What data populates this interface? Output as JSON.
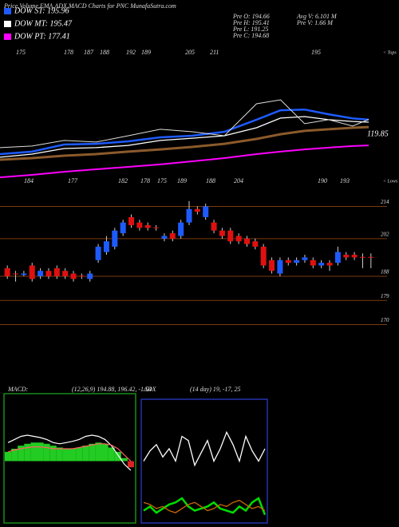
{
  "header": {
    "title": "Price,Volume,EMA,ADX,MACD Charts for PNC MunafaSutra.com",
    "legend": [
      {
        "label": "DOW ST: 195.96",
        "color": "#1e5bff"
      },
      {
        "label": "DOW MT: 195.47",
        "color": "#ffffff"
      },
      {
        "label": "DOW PT: 177.41",
        "color": "#ff00ff"
      }
    ],
    "info": [
      "Pre  O: 194.66",
      "Pre  H: 195.41",
      "Pre  L: 191.25",
      "Pre  C: 194.68",
      "Avg V: 6.101 M",
      "Pre  V: 1.66  M"
    ]
  },
  "chart_data": [
    {
      "type": "line",
      "tops_label": "< Tops",
      "lows_label": "< Lows",
      "last_label": "119.85",
      "tops": [
        175,
        178,
        187,
        188,
        192,
        189,
        205,
        211,
        195
      ],
      "lows": [
        184,
        177,
        182,
        178,
        175,
        189,
        188,
        204,
        190,
        193
      ],
      "x": [
        0,
        40,
        80,
        120,
        160,
        200,
        240,
        280,
        320,
        350,
        380,
        410,
        440,
        460
      ],
      "xlim": [
        0,
        460
      ],
      "ylim": [
        150,
        230
      ],
      "series": [
        {
          "color": "#8b5a2b",
          "values": [
            166.0,
            166.9,
            168.3,
            169.2,
            170.6,
            171.9,
            173.3,
            175.1,
            177.9,
            180.6,
            182.5,
            183.4,
            184.3,
            184.7
          ]
        },
        {
          "color": "#ff00ff",
          "values": [
            155.9,
            157.3,
            159.1,
            160.5,
            161.9,
            163.3,
            165.1,
            166.9,
            169.2,
            170.6,
            171.9,
            172.9,
            173.8,
            174.2
          ]
        },
        {
          "color": "#ffffff",
          "values": [
            167.4,
            169.2,
            172.4,
            172.9,
            174.2,
            177.0,
            178.3,
            179.7,
            184.3,
            189.8,
            190.7,
            188.9,
            187.9,
            187.5
          ]
        },
        {
          "color": "#1e5bff",
          "values": [
            169.2,
            170.6,
            174.7,
            175.1,
            176.5,
            178.8,
            179.7,
            182.0,
            188.9,
            194.3,
            194.7,
            192.0,
            189.7,
            188.9
          ]
        },
        {
          "color": "#dddddd",
          "values": [
            172.9,
            173.8,
            177.0,
            176.1,
            179.7,
            183.4,
            182.0,
            179.7,
            198.0,
            200.3,
            186.6,
            188.9,
            185.3,
            189.1
          ]
        }
      ]
    },
    {
      "type": "candlestick",
      "up_color": "#1e5bff",
      "down_color": "#e01010",
      "grid_color": "#7a3a10",
      "ylim": [
        166,
        218
      ],
      "yticks": [
        214,
        202,
        188,
        179,
        170
      ],
      "open": [
        191,
        189,
        188.5,
        192,
        188,
        190,
        191,
        190,
        189,
        188.2,
        187,
        194,
        197,
        199,
        204,
        210,
        208,
        207,
        206.2,
        202,
        204,
        203,
        208,
        213,
        210,
        208,
        205,
        205,
        203,
        202,
        201,
        199,
        194,
        189,
        194,
        193,
        194,
        194,
        192,
        193,
        193,
        196,
        196,
        195.2,
        195.2
      ],
      "close": [
        188,
        188.8,
        189,
        187,
        190,
        188,
        188,
        188,
        187,
        188,
        189,
        199,
        201,
        205,
        208,
        207,
        206,
        206,
        206,
        203,
        202,
        208,
        213,
        212,
        214,
        205,
        203,
        201,
        201,
        200,
        199,
        192,
        190,
        194,
        193,
        194,
        195,
        192,
        193,
        192,
        197,
        195,
        195,
        195,
        195
      ],
      "high": [
        192,
        190,
        190,
        193,
        191,
        191,
        192,
        191,
        190,
        189,
        190,
        200,
        203,
        206,
        209,
        211,
        209,
        208,
        207,
        204,
        205,
        209,
        216,
        214,
        215,
        209,
        206,
        206,
        204,
        203,
        202,
        200,
        195,
        195,
        195,
        195,
        196,
        195,
        194,
        194,
        199,
        197,
        197,
        196.5,
        196.5
      ],
      "low": [
        187,
        186,
        188,
        186,
        187,
        187,
        187,
        187,
        186,
        187,
        186,
        193,
        196,
        198,
        203,
        206,
        205,
        205,
        205,
        201,
        201,
        202,
        207,
        211,
        209,
        204,
        202,
        200,
        200,
        199,
        198,
        191,
        189,
        188,
        192,
        192,
        193,
        191,
        191,
        190,
        192,
        194,
        194,
        191,
        191
      ]
    },
    {
      "type": "macd",
      "label": "MACD:",
      "params": "(12,26,9) 194.88, 196.42, -1.54",
      "ylim": [
        -10,
        10
      ],
      "histogram": [
        1.5,
        2,
        2.5,
        2.8,
        3,
        3,
        2.8,
        2.5,
        2.2,
        2,
        2,
        2.2,
        2.5,
        2.8,
        3,
        2.8,
        2.2,
        1.5,
        0.5,
        -1
      ],
      "series": [
        {
          "color": "#ffffff",
          "values": [
            3,
            3.5,
            4,
            4.2,
            4,
            3.8,
            3.5,
            3,
            2.8,
            3,
            3.2,
            3.5,
            4,
            4.2,
            4,
            3.5,
            2.5,
            1,
            -0.5,
            -1.5
          ]
        },
        {
          "color": "#ff6060",
          "values": [
            1.5,
            1.8,
            2,
            2.2,
            2.3,
            2.3,
            2.2,
            2,
            2,
            2,
            2,
            2.2,
            2.4,
            2.6,
            2.8,
            2.8,
            2.6,
            2,
            1,
            0
          ]
        }
      ]
    },
    {
      "type": "adx",
      "label": "ADX",
      "params": "(14 day) 19, -17, 25",
      "ylim": [
        0,
        60
      ],
      "series": [
        {
          "color": "#ffffff",
          "values": [
            30,
            35,
            38,
            32,
            36,
            30,
            42,
            40,
            28,
            34,
            40,
            30,
            36,
            44,
            38,
            30,
            42,
            35,
            30,
            36
          ]
        },
        {
          "color": "#00dd00",
          "values": [
            6,
            8,
            5,
            7,
            9,
            10,
            12,
            8,
            6,
            7,
            8,
            10,
            7,
            6,
            5,
            8,
            6,
            10,
            12,
            4
          ]
        },
        {
          "color": "#cc6600",
          "values": [
            10,
            9,
            7,
            8,
            6,
            5,
            7,
            9,
            10,
            8,
            6,
            7,
            9,
            8,
            10,
            11,
            9,
            7,
            8,
            6
          ]
        }
      ]
    }
  ]
}
